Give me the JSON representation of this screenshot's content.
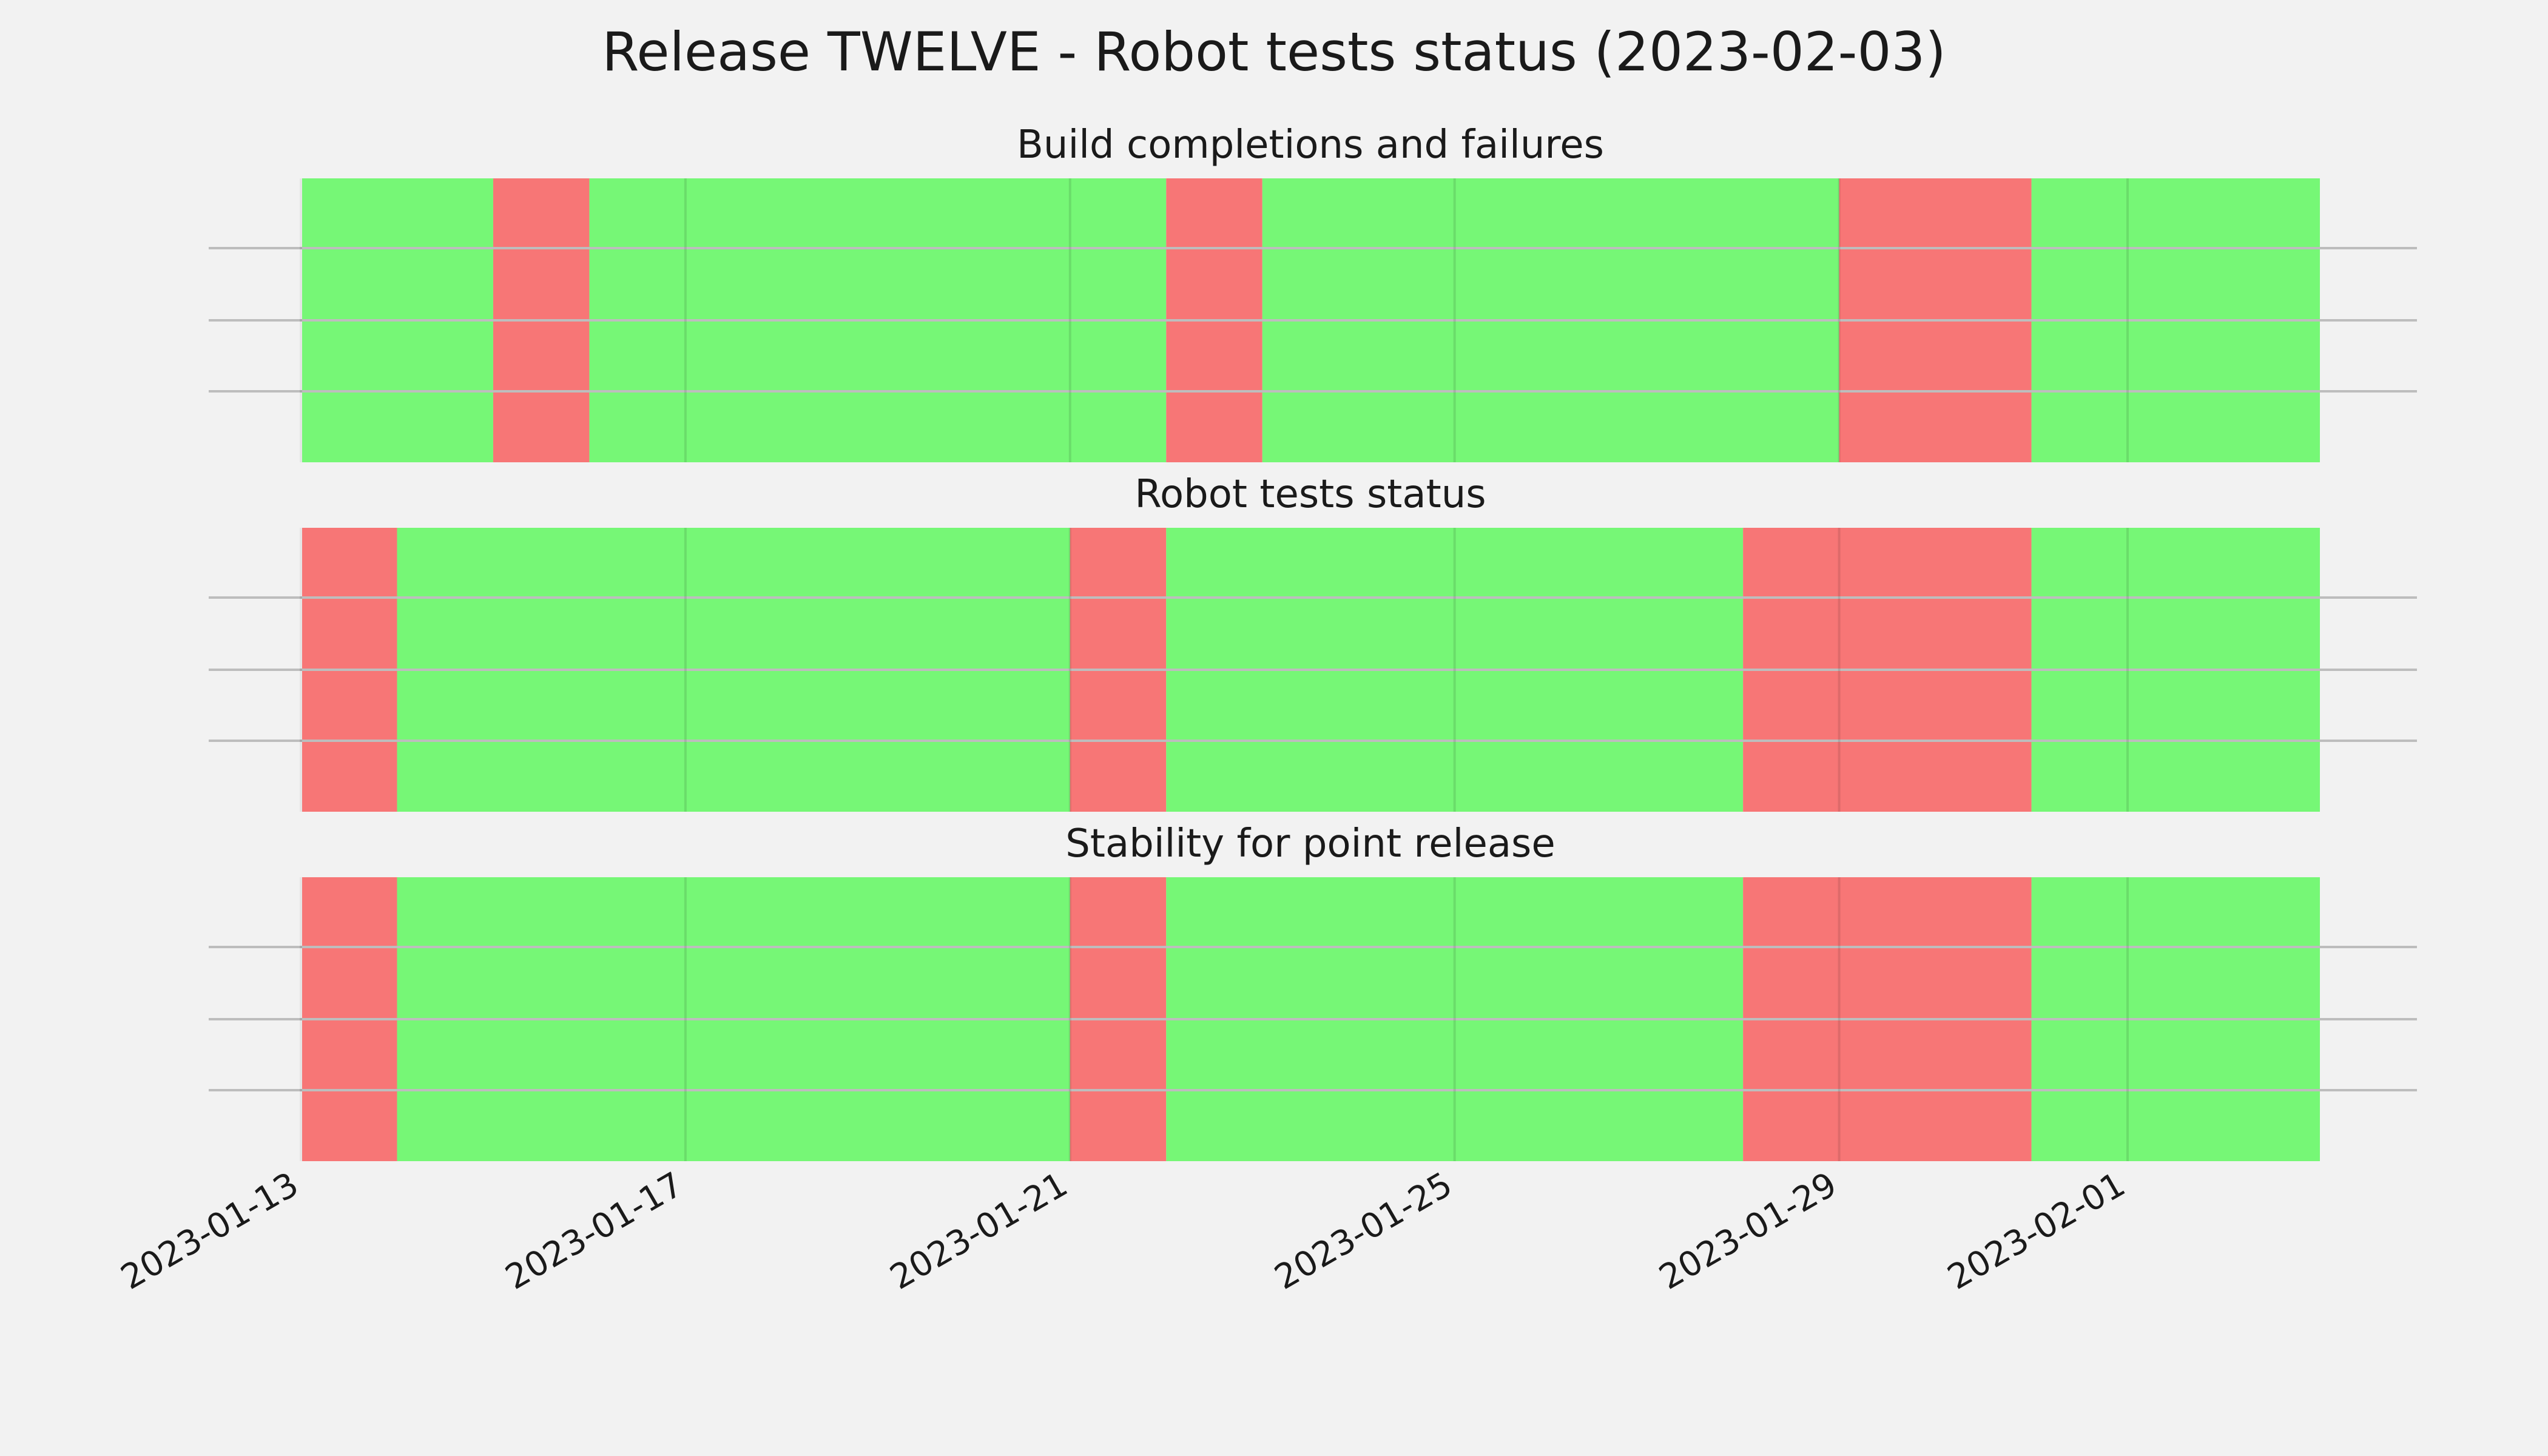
{
  "chart_data": {
    "type": "timeline",
    "title": "Release TWELVE - Robot tests status (2023-02-03)",
    "x_axis": {
      "type": "date",
      "range": [
        "2023-01-13",
        "2023-02-03"
      ],
      "ticks": [
        "2023-01-13",
        "2023-01-17",
        "2023-01-21",
        "2023-01-25",
        "2023-01-29",
        "2023-02-01"
      ]
    },
    "grid": true,
    "colors": {
      "pass": "#76f776",
      "fail": "#f77676",
      "background": "#f2f2f2"
    },
    "panels": [
      {
        "title": "Build completions and failures",
        "segments": [
          {
            "start": "2023-01-13",
            "end": "2023-01-15",
            "status": "pass"
          },
          {
            "start": "2023-01-15",
            "end": "2023-01-16",
            "status": "fail"
          },
          {
            "start": "2023-01-16",
            "end": "2023-01-22",
            "status": "pass"
          },
          {
            "start": "2023-01-22",
            "end": "2023-01-23",
            "status": "fail"
          },
          {
            "start": "2023-01-23",
            "end": "2023-01-29",
            "status": "pass"
          },
          {
            "start": "2023-01-29",
            "end": "2023-01-31",
            "status": "fail"
          },
          {
            "start": "2023-01-31",
            "end": "2023-02-03",
            "status": "pass"
          }
        ]
      },
      {
        "title": "Robot tests status",
        "segments": [
          {
            "start": "2023-01-13",
            "end": "2023-01-14",
            "status": "fail"
          },
          {
            "start": "2023-01-14",
            "end": "2023-01-21",
            "status": "pass"
          },
          {
            "start": "2023-01-21",
            "end": "2023-01-22",
            "status": "fail"
          },
          {
            "start": "2023-01-22",
            "end": "2023-01-28",
            "status": "pass"
          },
          {
            "start": "2023-01-28",
            "end": "2023-01-31",
            "status": "fail"
          },
          {
            "start": "2023-01-31",
            "end": "2023-02-03",
            "status": "pass"
          }
        ]
      },
      {
        "title": "Stability for point release",
        "segments": [
          {
            "start": "2023-01-13",
            "end": "2023-01-14",
            "status": "fail"
          },
          {
            "start": "2023-01-14",
            "end": "2023-01-21",
            "status": "pass"
          },
          {
            "start": "2023-01-21",
            "end": "2023-01-22",
            "status": "fail"
          },
          {
            "start": "2023-01-22",
            "end": "2023-01-28",
            "status": "pass"
          },
          {
            "start": "2023-01-28",
            "end": "2023-01-31",
            "status": "fail"
          },
          {
            "start": "2023-01-31",
            "end": "2023-02-03",
            "status": "pass"
          }
        ]
      }
    ]
  }
}
